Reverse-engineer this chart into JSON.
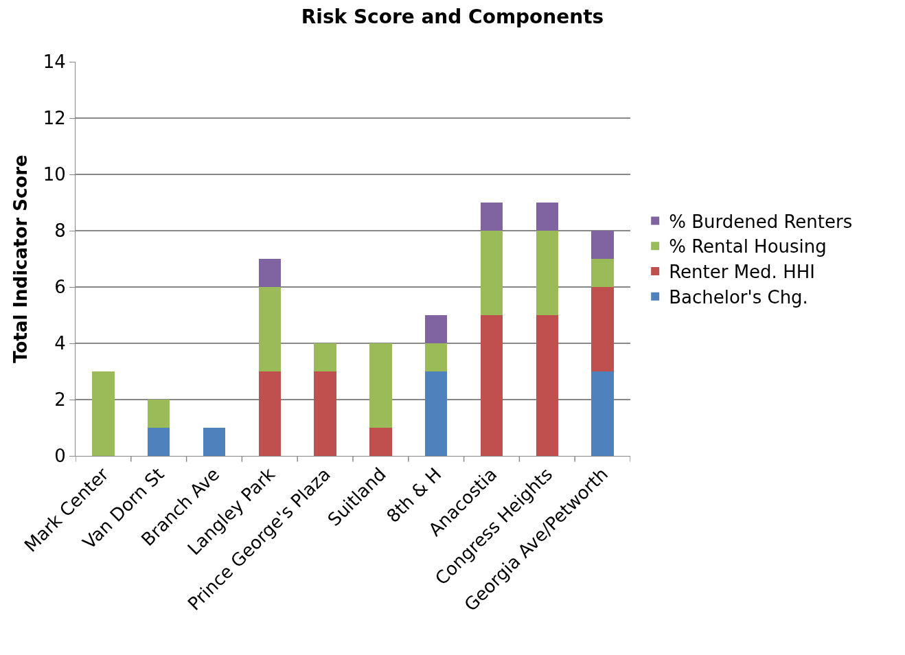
{
  "chart_data": {
    "type": "bar",
    "title": "Risk Score and Components",
    "ylabel": "Total Indicator Score",
    "stacked": true,
    "categories": [
      "Mark Center",
      "Van Dorn St",
      "Branch Ave",
      "Langley Park",
      "Prince George's Plaza",
      "Suitland",
      "8th & H",
      "Anacostia",
      "Congress Heights",
      "Georgia Ave/Petworth"
    ],
    "series": [
      {
        "name": "Bachelor's Chg.",
        "color": "#4f81bd",
        "values": [
          0,
          1,
          1,
          0,
          0,
          0,
          3,
          0,
          0,
          3
        ]
      },
      {
        "name": "Renter Med. HHI",
        "color": "#c0504d",
        "values": [
          0,
          0,
          0,
          3,
          3,
          1,
          0,
          5,
          5,
          3
        ]
      },
      {
        "name": "% Rental Housing",
        "color": "#9bbb59",
        "values": [
          3,
          1,
          0,
          3,
          1,
          3,
          1,
          3,
          3,
          1
        ]
      },
      {
        "name": "% Burdened Renters",
        "color": "#8064a2",
        "values": [
          0,
          0,
          0,
          1,
          0,
          0,
          1,
          1,
          1,
          1
        ]
      }
    ],
    "ylim": [
      0,
      14
    ],
    "yticks": [
      0,
      2,
      4,
      6,
      8,
      10,
      12,
      14
    ],
    "grid": "y",
    "legend": "right"
  }
}
